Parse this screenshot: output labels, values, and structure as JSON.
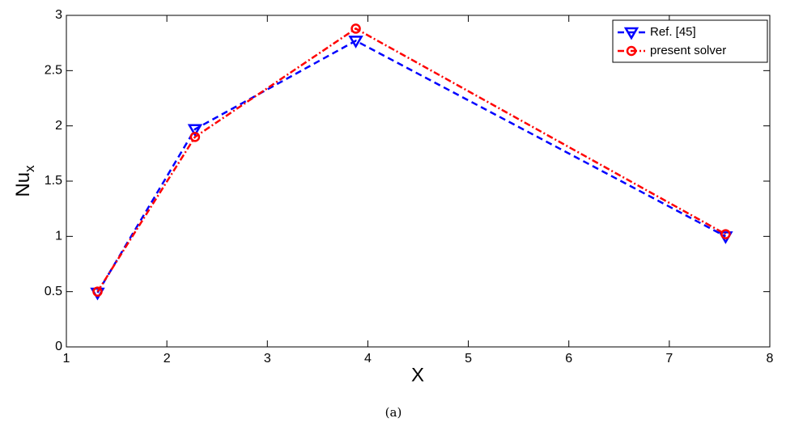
{
  "chart_data": {
    "type": "line",
    "x_label": "X",
    "y_label": "Nu",
    "y_label_subscript": "x",
    "caption": "(a)",
    "xlim": [
      1,
      8
    ],
    "xticks": [
      1,
      2,
      3,
      4,
      5,
      6,
      7,
      8
    ],
    "ylim": [
      0,
      3
    ],
    "yticks": [
      0,
      0.5,
      1,
      1.5,
      2,
      2.5,
      3
    ],
    "legend": "upper right",
    "series": [
      {
        "name": "Ref. [45]",
        "color": "#0000ff",
        "marker": "triangle-down",
        "dash": "dashed",
        "x": [
          1.31,
          2.28,
          3.88,
          7.56
        ],
        "values": [
          0.49,
          1.97,
          2.77,
          1.0
        ]
      },
      {
        "name": "present solver",
        "color": "#ff0000",
        "marker": "circle",
        "dash": "dashdot",
        "x": [
          1.31,
          2.28,
          3.88,
          7.56
        ],
        "values": [
          0.5,
          1.9,
          2.88,
          1.02
        ]
      }
    ]
  }
}
